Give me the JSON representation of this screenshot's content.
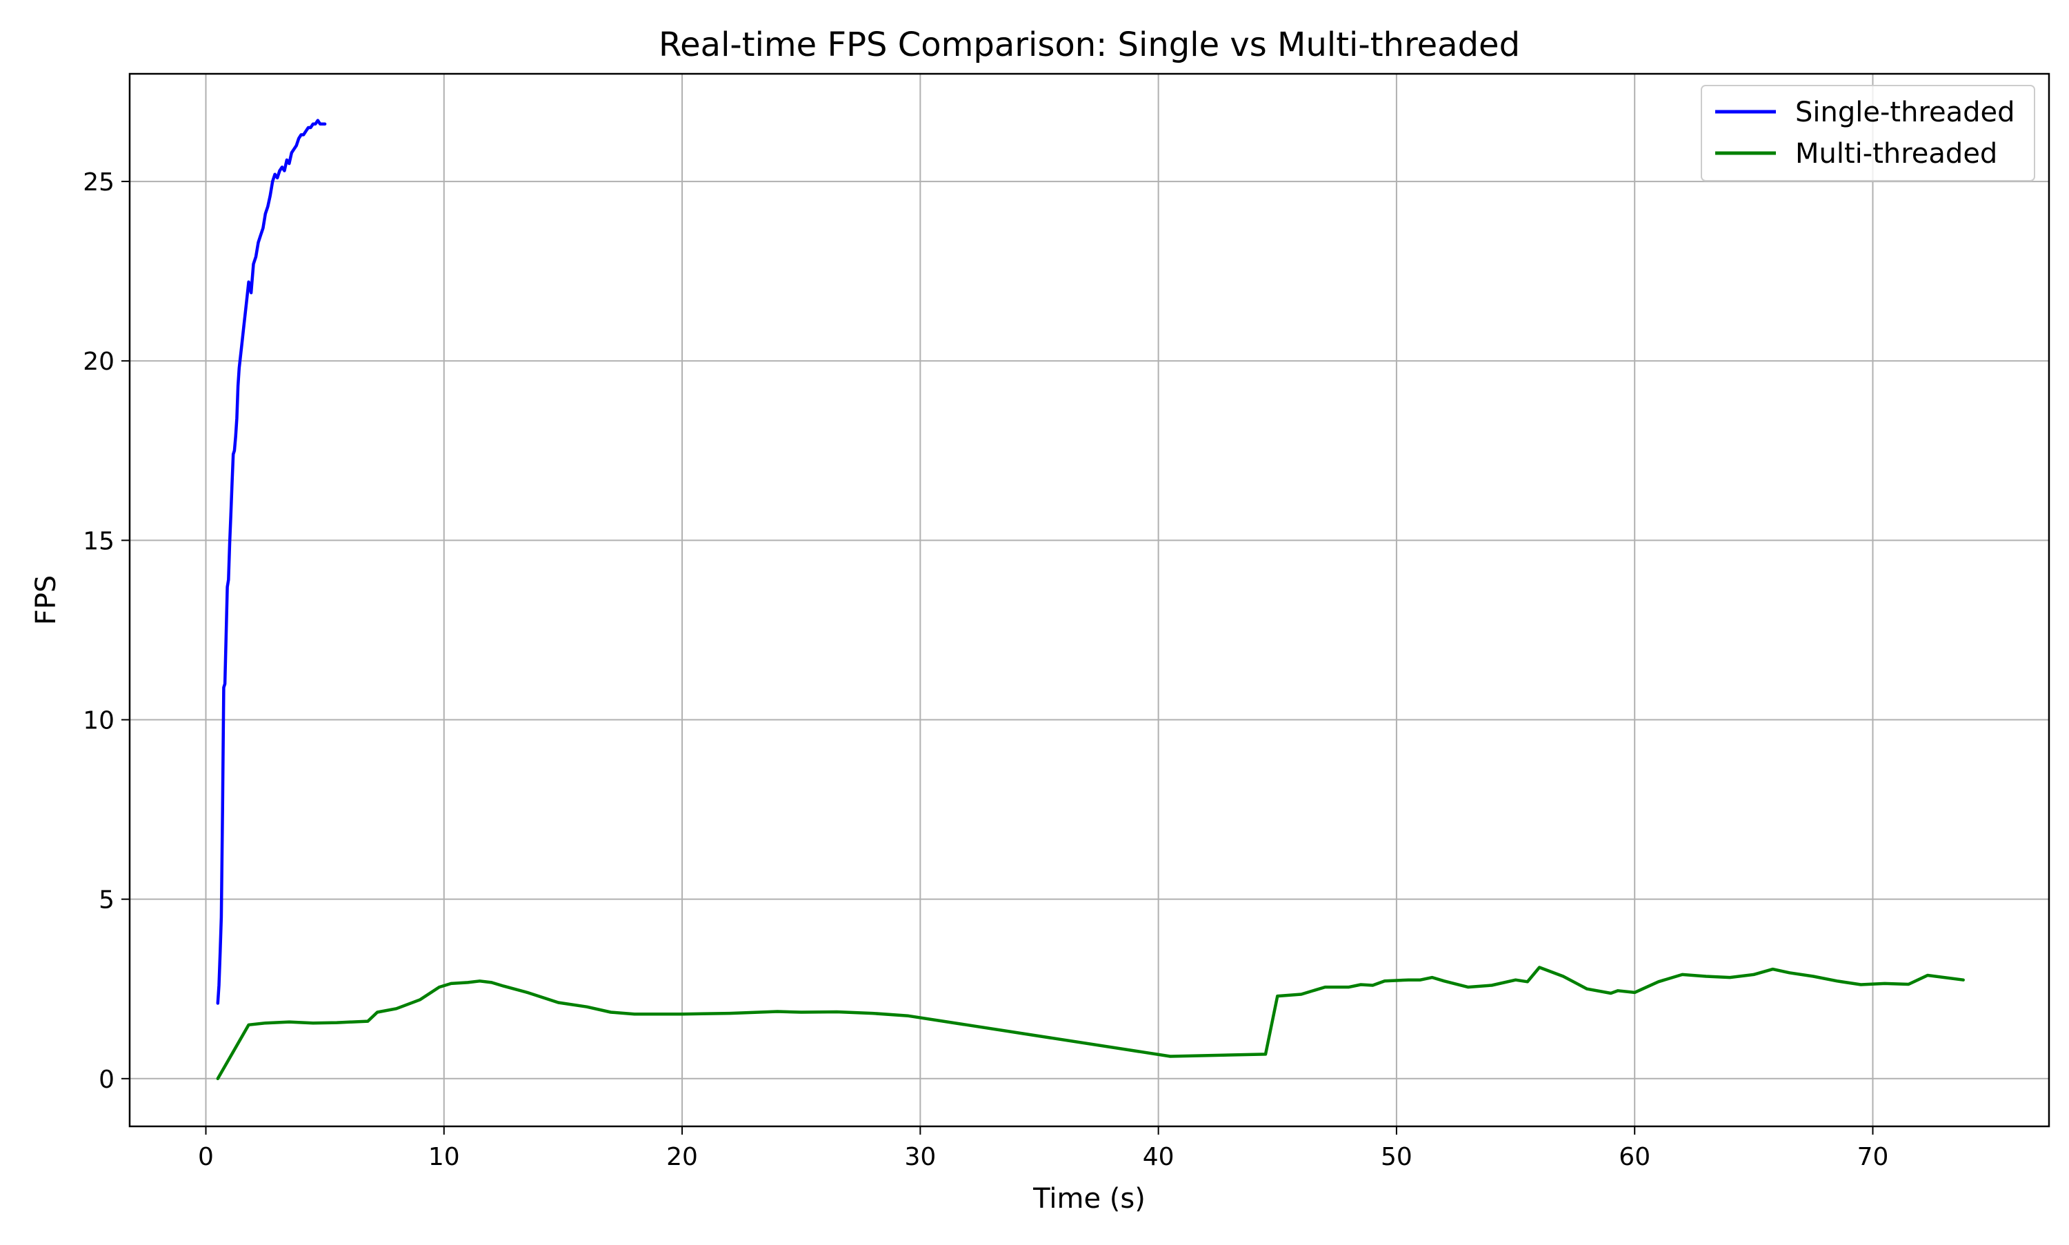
{
  "chart_data": {
    "type": "line",
    "title": "Real-time FPS Comparison: Single vs Multi-threaded",
    "xlabel": "Time (s)",
    "ylabel": "FPS",
    "xlim": [
      -3.2,
      77.4
    ],
    "ylim": [
      -1.33,
      28.0
    ],
    "x_ticks": [
      0,
      10,
      20,
      30,
      40,
      50,
      60,
      70
    ],
    "y_ticks": [
      0,
      5,
      10,
      15,
      20,
      25
    ],
    "x_tick_labels": [
      "0",
      "10",
      "20",
      "30",
      "40",
      "50",
      "60",
      "70"
    ],
    "y_tick_labels": [
      "0",
      "5",
      "10",
      "15",
      "20",
      "25"
    ],
    "grid": true,
    "legend_position": "top-right",
    "series": [
      {
        "name": "Single-threaded",
        "color": "#0000ff",
        "x": [
          0.5,
          0.55,
          0.6,
          0.65,
          0.7,
          0.75,
          0.8,
          0.85,
          0.9,
          0.95,
          1.0,
          1.05,
          1.1,
          1.15,
          1.2,
          1.25,
          1.3,
          1.35,
          1.4,
          1.5,
          1.6,
          1.7,
          1.8,
          1.9,
          2.0,
          2.1,
          2.2,
          2.3,
          2.4,
          2.5,
          2.6,
          2.7,
          2.8,
          2.9,
          3.0,
          3.1,
          3.2,
          3.3,
          3.4,
          3.5,
          3.6,
          3.7,
          3.8,
          3.9,
          4.0,
          4.1,
          4.2,
          4.3,
          4.4,
          4.5,
          4.6,
          4.7,
          4.8,
          4.9,
          5.0
        ],
        "y": [
          2.1,
          2.6,
          3.5,
          4.5,
          7.5,
          10.9,
          11.0,
          12.3,
          13.7,
          13.9,
          14.9,
          15.7,
          16.6,
          17.4,
          17.5,
          17.9,
          18.4,
          19.3,
          19.8,
          20.4,
          21.0,
          21.6,
          22.2,
          21.9,
          22.7,
          22.9,
          23.3,
          23.5,
          23.7,
          24.1,
          24.3,
          24.6,
          25.0,
          25.2,
          25.1,
          25.3,
          25.4,
          25.3,
          25.6,
          25.5,
          25.8,
          25.9,
          26.0,
          26.2,
          26.3,
          26.3,
          26.4,
          26.5,
          26.5,
          26.6,
          26.6,
          26.7,
          26.6,
          26.6,
          26.6
        ]
      },
      {
        "name": "Multi-threaded",
        "color": "#008000",
        "x": [
          0.5,
          1.8,
          2.5,
          3.5,
          4.5,
          5.5,
          6.8,
          7.2,
          8.0,
          9.0,
          9.8,
          10.3,
          11.0,
          11.5,
          12.0,
          12.5,
          13.5,
          14.8,
          16.0,
          17.0,
          18.0,
          20.0,
          22.0,
          24.0,
          25.0,
          26.5,
          28.0,
          29.5,
          40.5,
          44.5,
          45.0,
          46.0,
          47.0,
          48.0,
          48.5,
          49.0,
          49.5,
          50.5,
          51.0,
          51.5,
          52.0,
          53.0,
          54.0,
          55.0,
          55.5,
          56.0,
          57.0,
          58.0,
          59.0,
          59.3,
          60.0,
          61.0,
          62.0,
          63.0,
          64.0,
          65.0,
          65.8,
          66.5,
          67.5,
          68.5,
          69.5,
          70.5,
          71.5,
          72.3,
          73.8
        ],
        "y": [
          0.0,
          1.5,
          1.55,
          1.58,
          1.55,
          1.56,
          1.6,
          1.85,
          1.95,
          2.2,
          2.55,
          2.65,
          2.68,
          2.72,
          2.68,
          2.58,
          2.4,
          2.12,
          2.0,
          1.85,
          1.8,
          1.8,
          1.82,
          1.87,
          1.85,
          1.86,
          1.82,
          1.75,
          0.62,
          0.68,
          2.3,
          2.35,
          2.55,
          2.55,
          2.62,
          2.6,
          2.72,
          2.75,
          2.75,
          2.82,
          2.72,
          2.55,
          2.6,
          2.75,
          2.7,
          3.1,
          2.85,
          2.5,
          2.38,
          2.45,
          2.4,
          2.7,
          2.9,
          2.85,
          2.82,
          2.9,
          3.05,
          2.95,
          2.85,
          2.72,
          2.62,
          2.65,
          2.63,
          2.88,
          2.75
        ]
      }
    ]
  }
}
